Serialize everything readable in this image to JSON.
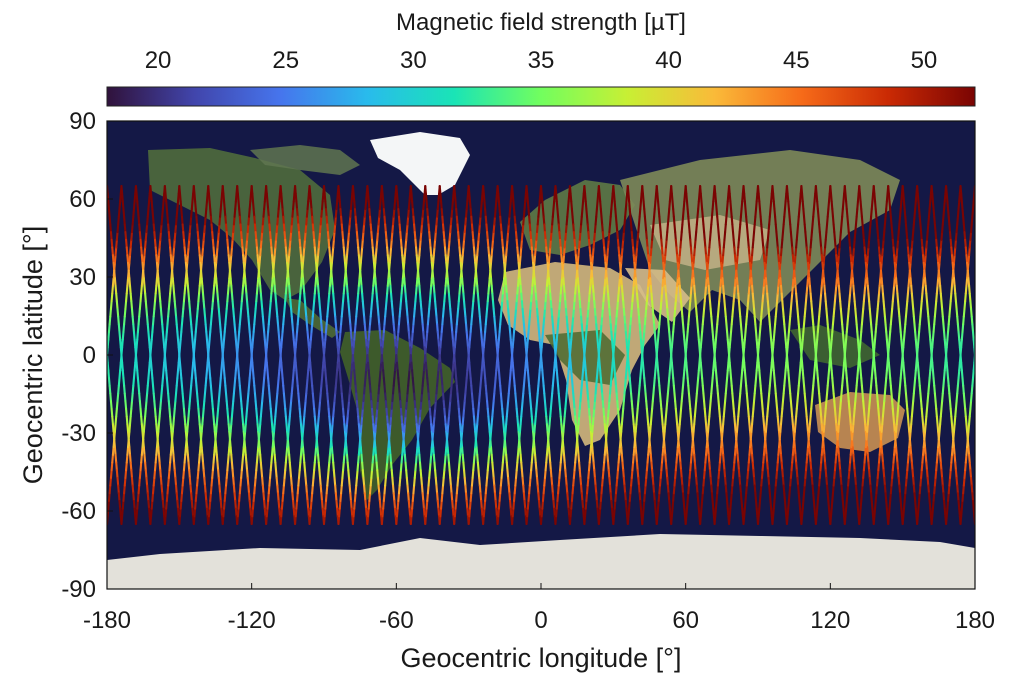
{
  "chart_data": {
    "type": "heatmap",
    "title": "",
    "xlabel": "Geocentric longitude [°]",
    "ylabel": "Geocentric latitude [°]",
    "xlim": [
      -180,
      180
    ],
    "ylim": [
      -90,
      90
    ],
    "xticks": [
      -180,
      -120,
      -60,
      0,
      60,
      120,
      180
    ],
    "yticks": [
      90,
      60,
      30,
      0,
      -30,
      -60,
      -90
    ],
    "colorbar": {
      "label": "Magnetic field strength [µT]",
      "range": [
        18,
        52
      ],
      "ticks": [
        20,
        25,
        30,
        35,
        40,
        45,
        50
      ],
      "colormap": "turbo",
      "location": "top"
    },
    "track_latitude_limit": [
      -65,
      65
    ],
    "track_longitude_spacing_deg": 6,
    "background": "satellite map of Earth",
    "ocean_color": "#141846"
  }
}
